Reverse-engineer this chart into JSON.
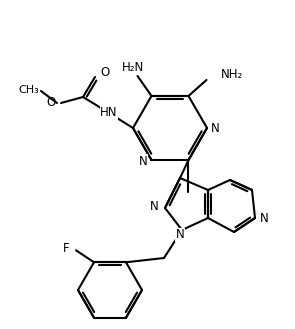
{
  "bg": "#ffffff",
  "lc": "#000000",
  "lw": 1.5,
  "fs": 8.5,
  "figsize": [
    2.96,
    3.29
  ],
  "dpi": 100
}
